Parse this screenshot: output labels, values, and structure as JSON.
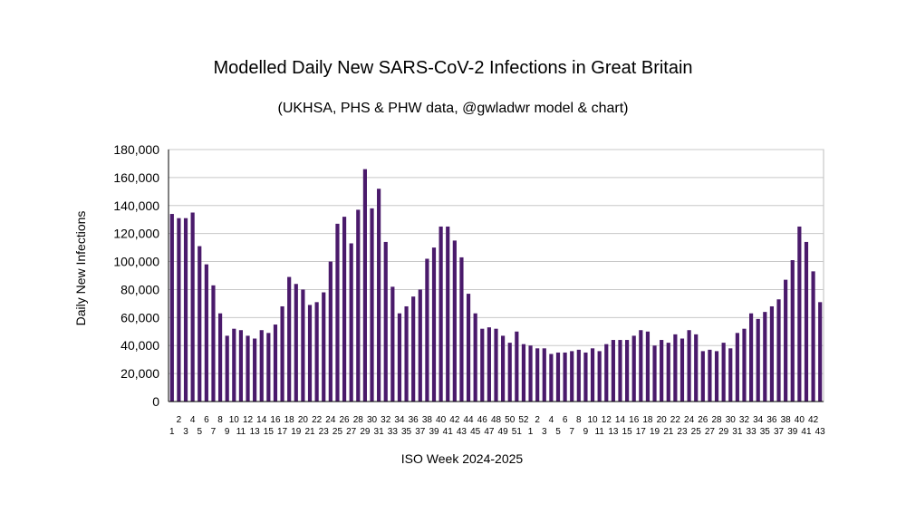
{
  "chart_data": {
    "type": "bar",
    "title": "Modelled Daily New SARS-CoV-2 Infections in Great Britain",
    "subtitle": "(UKHSA, PHS & PHW data, @gwladwr model & chart)",
    "xlabel": "ISO Week 2024-2025",
    "ylabel": "Daily New Infections",
    "ylim": [
      0,
      180000
    ],
    "yticks": [
      "0",
      "20,000",
      "40,000",
      "60,000",
      "80,000",
      "100,000",
      "120,000",
      "140,000",
      "160,000",
      "180,000"
    ],
    "grid": true,
    "legend": "none",
    "bar_color": "#4a1a6b",
    "categories": [
      "1",
      "2",
      "3",
      "4",
      "5",
      "6",
      "7",
      "8",
      "9",
      "10",
      "11",
      "12",
      "13",
      "14",
      "15",
      "16",
      "17",
      "18",
      "19",
      "20",
      "21",
      "22",
      "23",
      "24",
      "25",
      "26",
      "27",
      "28",
      "29",
      "30",
      "31",
      "32",
      "33",
      "34",
      "35",
      "36",
      "37",
      "38",
      "39",
      "40",
      "41",
      "42",
      "43",
      "44",
      "45",
      "46",
      "47",
      "48",
      "49",
      "50",
      "51",
      "52",
      "1",
      "2",
      "3",
      "4",
      "5",
      "6",
      "7",
      "8",
      "9",
      "10",
      "11",
      "12",
      "13",
      "14",
      "15",
      "16",
      "17",
      "18",
      "19",
      "20",
      "21",
      "22",
      "23",
      "24",
      "25",
      "26",
      "27",
      "28",
      "29",
      "30",
      "31",
      "32",
      "33",
      "34",
      "35",
      "36",
      "37",
      "38",
      "39",
      "40",
      "41",
      "42",
      "43"
    ],
    "values": [
      134000,
      131000,
      131000,
      135000,
      111000,
      98000,
      83000,
      63000,
      47000,
      52000,
      51000,
      47000,
      45000,
      51000,
      49000,
      55000,
      68000,
      89000,
      84000,
      80000,
      69000,
      71000,
      78000,
      100000,
      127000,
      132000,
      113000,
      137000,
      166000,
      138000,
      152000,
      114000,
      82000,
      63000,
      68000,
      75000,
      80000,
      102000,
      110000,
      125000,
      125000,
      115000,
      103000,
      77000,
      63000,
      52000,
      53000,
      52000,
      47000,
      42000,
      50000,
      41000,
      40000,
      38000,
      38000,
      34000,
      35000,
      35000,
      36000,
      37000,
      35000,
      38000,
      36000,
      41000,
      44000,
      44000,
      44000,
      47000,
      51000,
      50000,
      40000,
      44000,
      42000,
      48000,
      45000,
      51000,
      48000,
      36000,
      37000,
      36000,
      42000,
      38000,
      49000,
      52000,
      63000,
      59000,
      64000,
      68000,
      73000,
      87000,
      101000,
      125000,
      114000,
      93000,
      71000
    ]
  }
}
